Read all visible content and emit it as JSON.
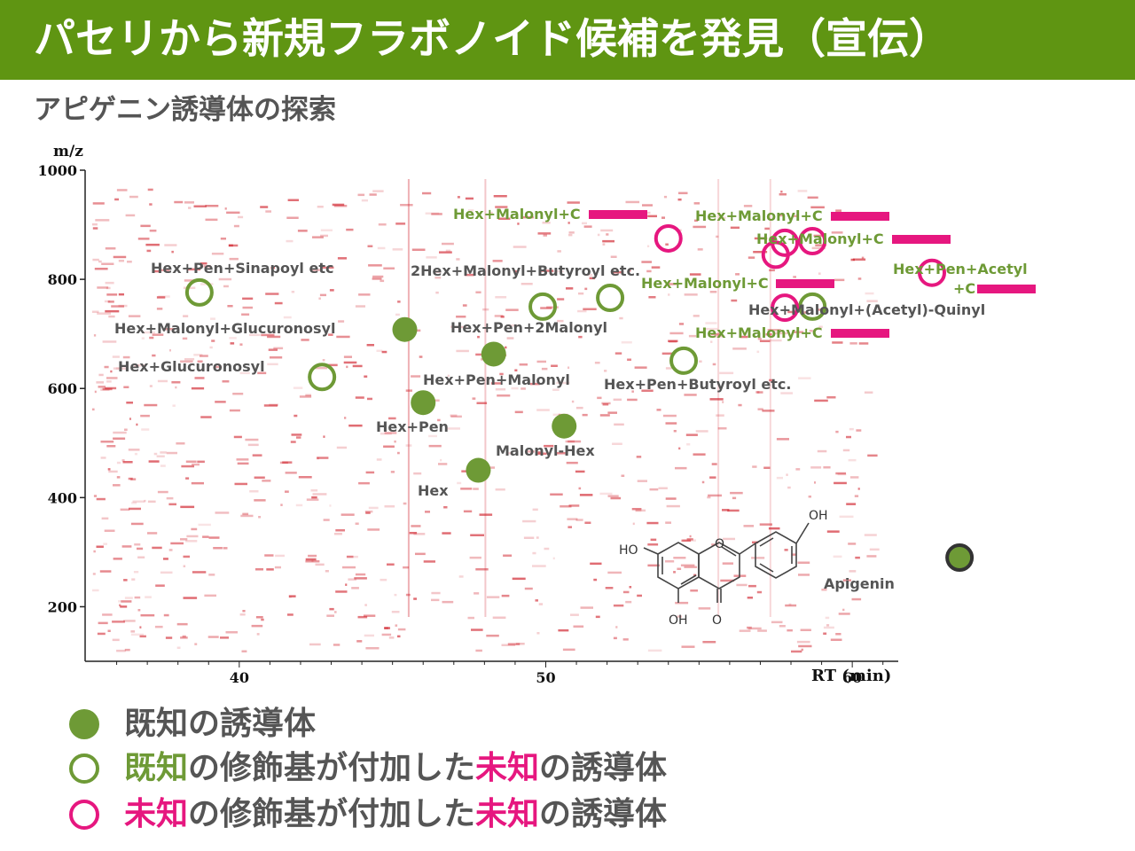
{
  "header": {
    "title": "パセリから新規フラボノイド候補を発見（宣伝）",
    "subtitle": "アピゲニン誘導体の探索"
  },
  "colors": {
    "header_bg": "#5f9512",
    "known": "#6e9a36",
    "unknown": "#e6177f",
    "label_green": "#6e9a36",
    "label_gray": "#555555",
    "peaks": "#d0202a"
  },
  "chart_data": {
    "type": "scatter",
    "title": "",
    "xlabel": "RT (min)",
    "ylabel": "m/z",
    "xlim": [
      35,
      61.5
    ],
    "ylim": [
      100,
      1000
    ],
    "x_ticks": [
      40,
      50,
      60
    ],
    "y_ticks": [
      200,
      400,
      600,
      800,
      1000
    ],
    "background": "LC-MS peak map (red peaks)",
    "series": [
      {
        "name": "既知の誘導体",
        "style": "filled",
        "points": [
          {
            "x": 45.4,
            "y": 708,
            "label": "Hex+Malonyl+Glucuronosyl",
            "label_color": "gray"
          },
          {
            "x": 48.3,
            "y": 663,
            "label": "Hex+Pen+Malonyl",
            "label_color": "gray"
          },
          {
            "x": 46.0,
            "y": 574,
            "label": "Hex+Pen",
            "label_color": "gray"
          },
          {
            "x": 50.6,
            "y": 531,
            "label": "Malonyl-Hex",
            "label_color": "gray"
          },
          {
            "x": 47.8,
            "y": 450,
            "label": "Hex",
            "label_color": "gray"
          },
          {
            "x": 63.5,
            "y": 290,
            "label": "Apigenin",
            "label_color": "gray"
          }
        ]
      },
      {
        "name": "既知の修飾基が付加した未知の誘導体",
        "style": "open",
        "points": [
          {
            "x": 38.7,
            "y": 776,
            "label": "Hex+Pen+Sinapoyl etc",
            "label_color": "gray"
          },
          {
            "x": 49.9,
            "y": 750,
            "label": "2Hex+Malonyl+Butyroyl etc.",
            "label_color": "gray"
          },
          {
            "x": 52.1,
            "y": 766,
            "label": "Hex+Pen+2Malonyl",
            "label_color": "gray"
          },
          {
            "x": 42.7,
            "y": 621,
            "label": "Hex+Glucuronosyl",
            "label_color": "gray"
          },
          {
            "x": 54.5,
            "y": 651,
            "label": "Hex+Pen+Butyroyl etc.",
            "label_color": "gray"
          },
          {
            "x": 58.7,
            "y": 750,
            "label": "Hex+Malonyl+(Acetyl)-Quinyl",
            "label_color": "gray"
          }
        ]
      },
      {
        "name": "未知の修飾基が付加した未知の誘導体",
        "style": "open",
        "points": [
          {
            "x": 54.0,
            "y": 875,
            "label": "Hex+Malonyl+C",
            "label_color": "green"
          },
          {
            "x": 57.5,
            "y": 845,
            "label": "Hex+Malonyl+C",
            "label_color": "green"
          },
          {
            "x": 57.8,
            "y": 867,
            "label": "",
            "label_color": "green"
          },
          {
            "x": 58.7,
            "y": 870,
            "label": "Hex+Malonyl+C",
            "label_color": "green"
          },
          {
            "x": 57.8,
            "y": 748,
            "label": "Hex+Malonyl+C",
            "label_color": "green"
          },
          {
            "x": 62.6,
            "y": 812,
            "label": "Hex+Pen+Acetyl +C",
            "label_color": "green"
          }
        ]
      }
    ],
    "extra_labels": [
      "Hex+Malonyl+C",
      "Hex+Malonyl+C"
    ]
  },
  "plot_text": {
    "y_axis_label": "m/z",
    "x_axis_label": "RT (min)",
    "known_labels": {
      "malonyl_glucuronosyl": "Hex+Malonyl+Glucuronosyl",
      "pen_malonyl": "Hex+Pen+Malonyl",
      "pen": "Hex+Pen",
      "malonyl_hex": "Malonyl-Hex",
      "hex": "Hex",
      "apigenin": "Apigenin"
    },
    "open_labels": {
      "sinapoyl": "Hex+Pen+Sinapoyl etc",
      "butyroyl2": "2Hex+Malonyl+Butyroyl etc.",
      "pen2malonyl": "Hex+Pen+2Malonyl",
      "glucuronosyl": "Hex+Glucuronosyl",
      "pen_butyroyl": "Hex+Pen+Butyroyl etc.",
      "quinyl": "Hex+Malonyl+(Acetyl)-Quinyl"
    },
    "unknown_labels": {
      "a": "Hex+Malonyl+C",
      "b": "Hex+Malonyl+C",
      "c": "Hex+Malonyl+C",
      "d": "Hex+Malonyl+C",
      "e": "Hex+Malonyl+C",
      "f_line1": "Hex+Pen+Acetyl",
      "f_line2": "+C"
    },
    "structure": {
      "ho": "HO",
      "oh_top": "OH",
      "oh_bottom": "OH",
      "o_ring": "O",
      "o_keto": "O"
    }
  },
  "legend": {
    "item1": {
      "text": "既知の誘導体"
    },
    "item2": {
      "part1": "既知",
      "part2": "の修飾基が付加した",
      "part3": "未知",
      "part4": "の誘導体"
    },
    "item3": {
      "part1": "未知",
      "part2": "の修飾基が付加した",
      "part3": "未知",
      "part4": "の誘導体"
    }
  }
}
